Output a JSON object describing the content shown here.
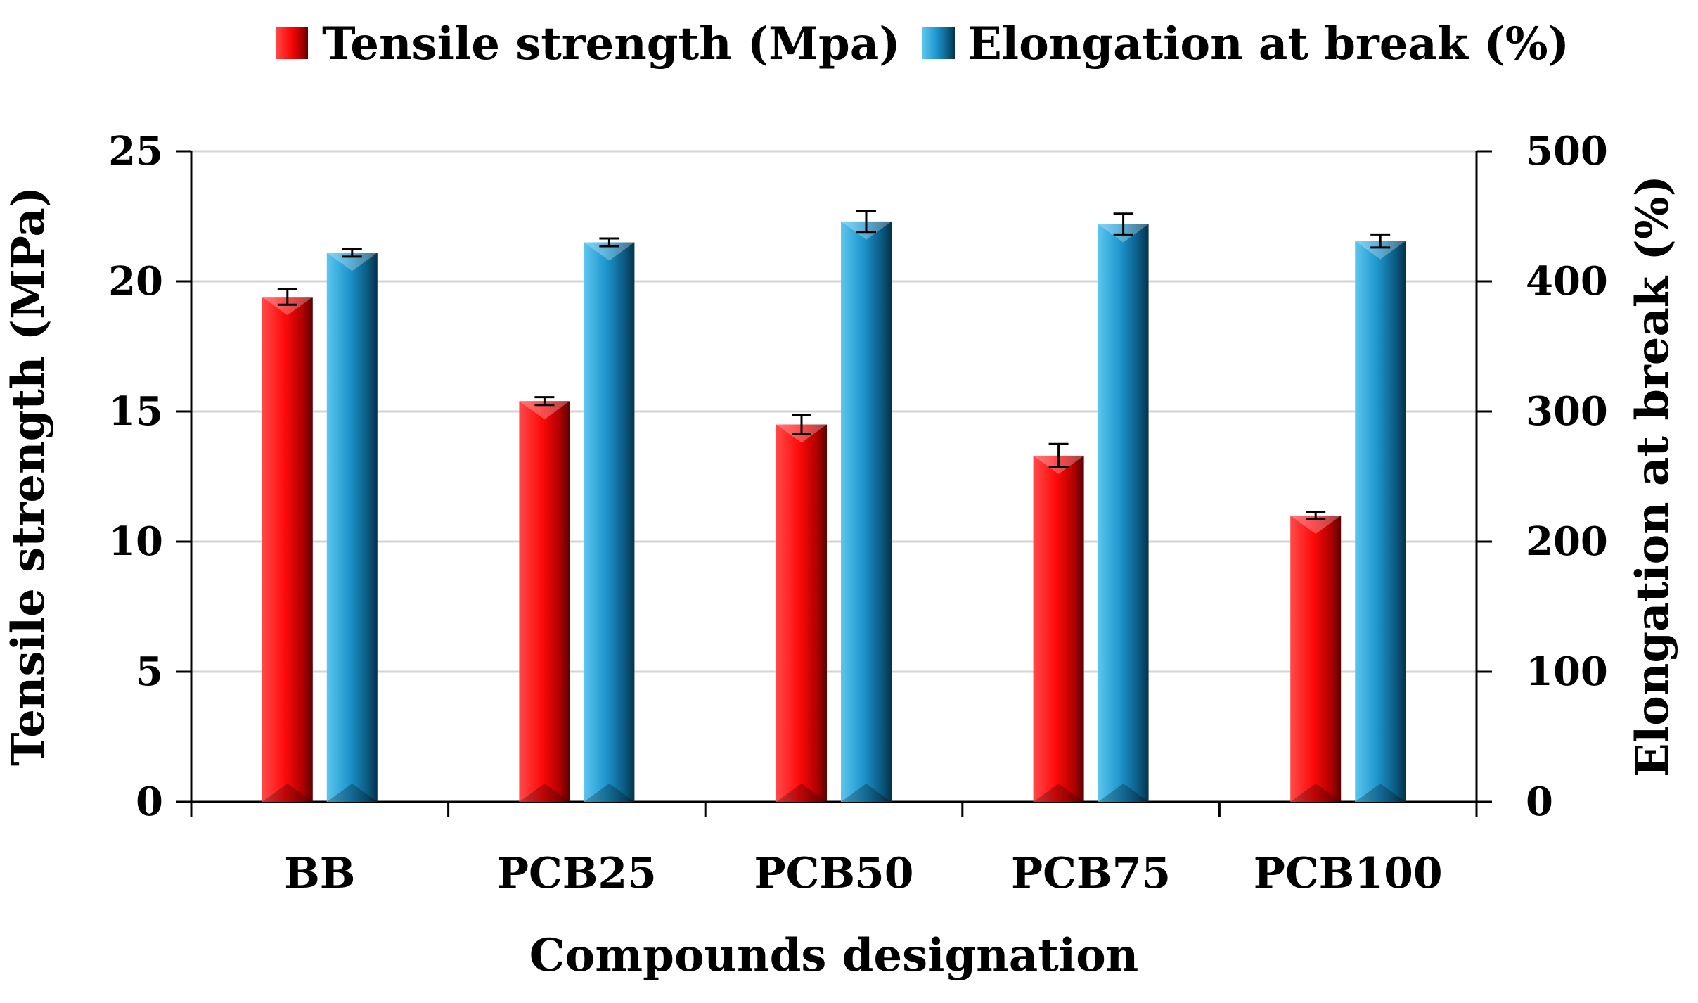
{
  "chart_data": {
    "type": "bar",
    "title": "",
    "categories": [
      "BB",
      "PCB25",
      "PCB50",
      "PCB75",
      "PCB100"
    ],
    "xlabel": "Compounds designation",
    "ylabel": "Tensile strength (MPa)",
    "y2label": "Elongation at break (%)",
    "ylim": [
      0,
      25
    ],
    "y2lim": [
      0,
      500
    ],
    "yticks": [
      "0",
      "5",
      "10",
      "15",
      "20",
      "25"
    ],
    "y2ticks": [
      "0",
      "100",
      "200",
      "300",
      "400",
      "500"
    ],
    "grid": true,
    "legend_position": "top",
    "series": [
      {
        "name": "Tensile strength (Mpa)",
        "axis": "left",
        "color": "#e01010",
        "values": [
          19.4,
          15.4,
          14.5,
          13.3,
          11.0
        ],
        "errors": [
          0.3,
          0.15,
          0.35,
          0.45,
          0.15
        ]
      },
      {
        "name": "Elongation at break (%)",
        "axis": "right",
        "color": "#1e90c8",
        "values": [
          422,
          430,
          446,
          444,
          431
        ],
        "errors": [
          3,
          3,
          8,
          8,
          5
        ]
      }
    ]
  }
}
